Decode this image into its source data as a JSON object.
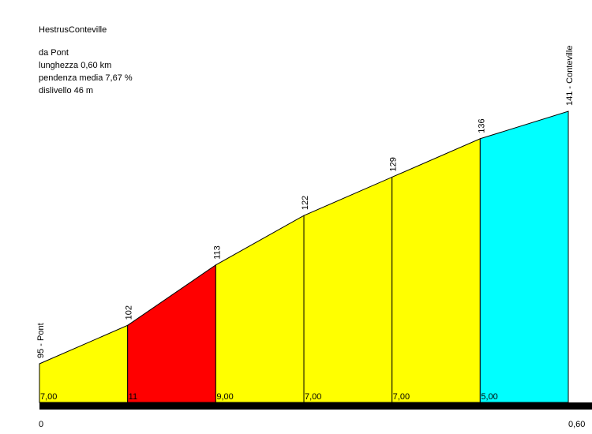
{
  "info": {
    "title": "HestrusConteville",
    "from": "da Pont",
    "length": "lunghezza 0,60 km",
    "avg_gradient": "pendenza media 7,67 %",
    "elevation_gain": "dislivello 46 m"
  },
  "chart_data": {
    "type": "area",
    "title": "HestrusConteville",
    "x_unit": "km",
    "x_axis_labels": [
      "0",
      "0,60"
    ],
    "xlim": [
      0,
      0.6
    ],
    "ylim": [
      80,
      150
    ],
    "points": [
      {
        "x": 0.0,
        "y": 95,
        "label": "95 - Pont"
      },
      {
        "x": 0.1,
        "y": 102,
        "label": "102"
      },
      {
        "x": 0.2,
        "y": 113,
        "label": "113"
      },
      {
        "x": 0.3,
        "y": 122,
        "label": "122"
      },
      {
        "x": 0.4,
        "y": 129,
        "label": "129"
      },
      {
        "x": 0.5,
        "y": 136,
        "label": "136"
      },
      {
        "x": 0.6,
        "y": 141,
        "label": "141 - Conteville"
      }
    ],
    "segments": [
      {
        "gradient": "7,00",
        "color": "#ffff00"
      },
      {
        "gradient": "11",
        "color": "#ff0000"
      },
      {
        "gradient": "9,00",
        "color": "#ffff00"
      },
      {
        "gradient": "7,00",
        "color": "#ffff00"
      },
      {
        "gradient": "7,00",
        "color": "#ffff00"
      },
      {
        "gradient": "5,00",
        "color": "#00ffff"
      }
    ]
  }
}
